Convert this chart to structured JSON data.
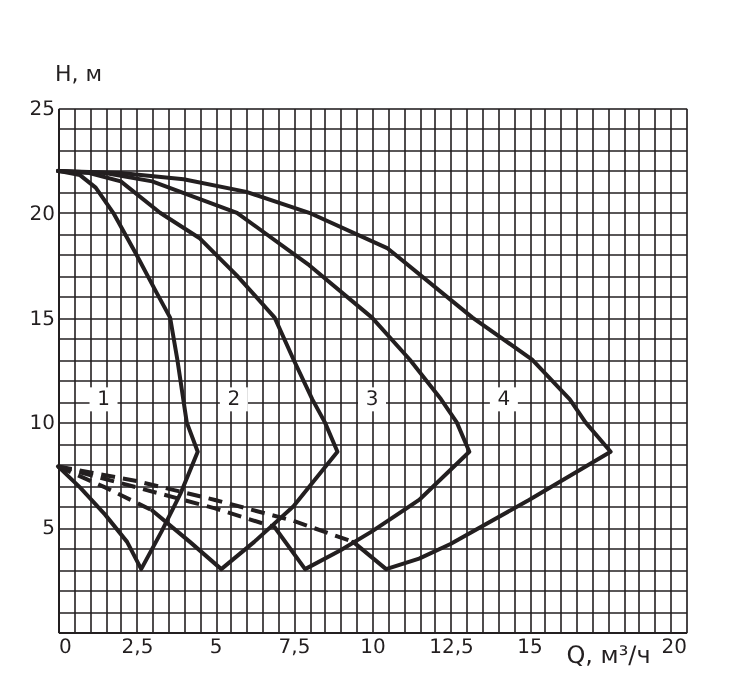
{
  "chart_data": {
    "type": "line",
    "xlabel": "Q, м³/ч",
    "ylabel": "H, м",
    "xlim": [
      0,
      20
    ],
    "ylim": [
      0,
      25
    ],
    "xticks": [
      0,
      {
        "value": 0.5,
        "label": null
      },
      {
        "value": 1,
        "label": null
      },
      {
        "value": 1.5,
        "label": null
      },
      {
        "value": 2,
        "label": null
      },
      {
        "value": 2.5,
        "label": "2,5"
      },
      {
        "value": 3,
        "label": null
      },
      {
        "value": 3.5,
        "label": null
      },
      {
        "value": 4,
        "label": null
      },
      {
        "value": 4.5,
        "label": null
      },
      5,
      {
        "value": 5.5,
        "label": null
      },
      {
        "value": 6,
        "label": null
      },
      {
        "value": 6.5,
        "label": null
      },
      {
        "value": 7,
        "label": null
      },
      {
        "value": 7.5,
        "label": "7,5"
      },
      {
        "value": 8,
        "label": null
      },
      {
        "value": 8.5,
        "label": null
      },
      {
        "value": 9,
        "label": null
      },
      {
        "value": 9.5,
        "label": null
      },
      10,
      {
        "value": 10.5,
        "label": null
      },
      {
        "value": 11,
        "label": null
      },
      {
        "value": 11.5,
        "label": null
      },
      {
        "value": 12,
        "label": null
      },
      {
        "value": 12.5,
        "label": "12,5"
      },
      {
        "value": 13,
        "label": null
      },
      {
        "value": 13.5,
        "label": null
      },
      {
        "value": 14,
        "label": null
      },
      {
        "value": 14.5,
        "label": null
      },
      15,
      {
        "value": 15.5,
        "label": null
      },
      {
        "value": 16,
        "label": null
      },
      {
        "value": 16.5,
        "label": null
      },
      {
        "value": 17,
        "label": null
      },
      {
        "value": 17.5,
        "label": null
      },
      {
        "value": 18,
        "label": null
      },
      {
        "value": 18.5,
        "label": null
      },
      {
        "value": 19,
        "label": null
      },
      {
        "value": 19.5,
        "label": null
      },
      20
    ],
    "yticks": [
      {
        "value": 0,
        "label": null
      },
      {
        "value": 1,
        "label": null
      },
      {
        "value": 2,
        "label": null
      },
      {
        "value": 3,
        "label": null
      },
      {
        "value": 4,
        "label": null
      },
      5,
      {
        "value": 6,
        "label": null
      },
      {
        "value": 7,
        "label": null
      },
      {
        "value": 8,
        "label": null
      },
      {
        "value": 9,
        "label": null
      },
      10,
      {
        "value": 11,
        "label": null
      },
      {
        "value": 12,
        "label": null
      },
      {
        "value": 13,
        "label": null
      },
      {
        "value": 14,
        "label": null
      },
      15,
      {
        "value": 16,
        "label": null
      },
      {
        "value": 17,
        "label": null
      },
      {
        "value": 18,
        "label": null
      },
      {
        "value": 19,
        "label": null
      },
      20,
      {
        "value": 21,
        "label": null
      },
      {
        "value": 22,
        "label": null
      },
      {
        "value": 23,
        "label": null
      },
      {
        "value": 24,
        "label": null
      },
      25
    ],
    "grid": true,
    "marker": "none",
    "series": [
      {
        "color": "#231f20",
        "line_style": "solid",
        "x": [
          0,
          0.7,
          1.2,
          1.76,
          2.5,
          3.1,
          3.57,
          3.8,
          4.1,
          4.45,
          3.9,
          3.3,
          2.65,
          2.2,
          1.5,
          0.7,
          0
        ],
        "values": [
          22,
          21.8,
          21.2,
          20,
          18,
          16.3,
          15,
          13,
          10,
          8.6,
          6.6,
          4.8,
          3,
          4.3,
          5.6,
          6.9,
          7.9
        ]
      },
      {
        "color": "#231f20",
        "line_style": "solid",
        "x": [
          0,
          1,
          2,
          3.25,
          4.5,
          5.7,
          6.9,
          7.5,
          8.1,
          8.5,
          8.9,
          7.5,
          6.25,
          5.2,
          4.2,
          3
        ],
        "values": [
          22,
          21.9,
          21.5,
          20,
          18.8,
          17,
          15,
          13,
          11.1,
          10,
          8.6,
          6,
          4.3,
          3,
          4.3,
          5.8
        ]
      },
      {
        "color": "#231f20",
        "line_style": "dashed",
        "x": [
          0,
          1.5,
          3
        ],
        "values": [
          7.9,
          6.9,
          5.8
        ]
      },
      {
        "color": "#231f20",
        "line_style": "solid",
        "x": [
          0,
          1.5,
          3,
          5.7,
          8,
          10,
          11.2,
          12.2,
          12.7,
          13.1,
          11.5,
          10,
          9,
          7.87,
          6.9
        ],
        "values": [
          22,
          21.9,
          21.5,
          20,
          17.5,
          15,
          13,
          11.1,
          10,
          8.6,
          6.3,
          4.8,
          3.9,
          3,
          5
        ]
      },
      {
        "color": "#231f20",
        "line_style": "dashed",
        "x": [
          0,
          2.5,
          5,
          6.9
        ],
        "values": [
          7.9,
          6.9,
          5.9,
          5
        ]
      },
      {
        "color": "#231f20",
        "line_style": "solid",
        "x": [
          0,
          2,
          4,
          6,
          8,
          10.5,
          13.2,
          15.1,
          16.3,
          16.8,
          17.6,
          15,
          12.5,
          11.5,
          10.45,
          9.4
        ],
        "values": [
          22,
          21.9,
          21.6,
          21,
          20,
          18.3,
          15,
          13,
          11.1,
          10,
          8.6,
          6.3,
          4.2,
          3.5,
          3,
          4.3
        ]
      },
      {
        "color": "#231f20",
        "line_style": "dashed",
        "x": [
          0,
          2.5,
          5,
          7.5,
          9.4
        ],
        "values": [
          7.9,
          7.2,
          6.3,
          5.3,
          4.3
        ]
      }
    ],
    "annotations": [
      {
        "text": "1",
        "x": 1.45,
        "y": 11.1
      },
      {
        "text": "2",
        "x": 5.6,
        "y": 11.1
      },
      {
        "text": "3",
        "x": 10,
        "y": 11.1
      },
      {
        "text": "4",
        "x": 14.2,
        "y": 11.1
      }
    ]
  }
}
